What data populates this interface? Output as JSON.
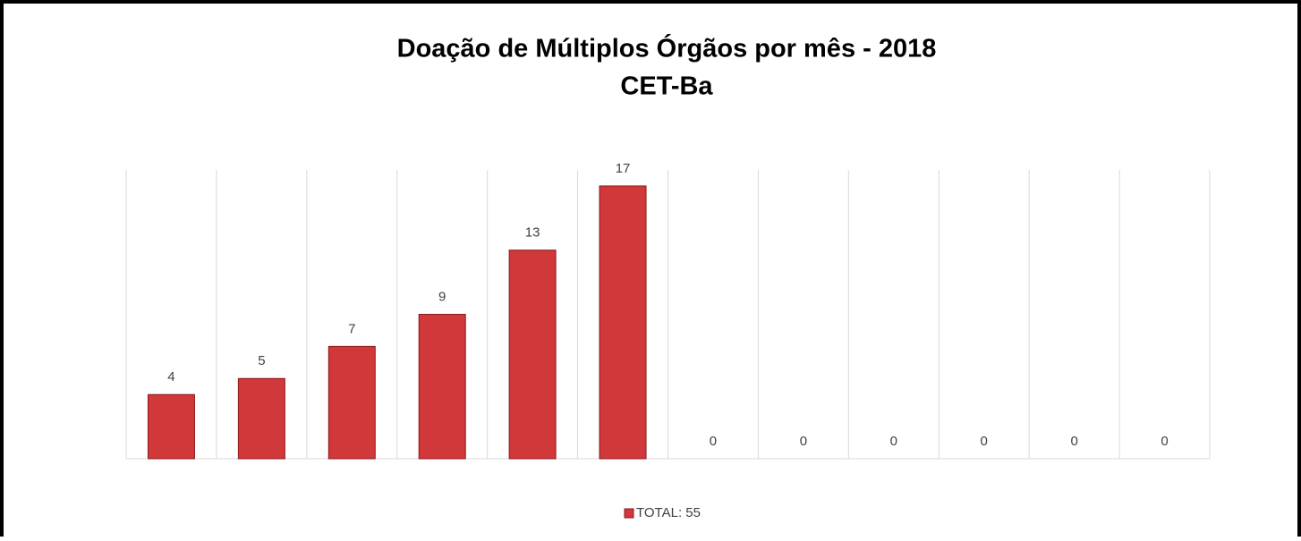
{
  "chart_data": {
    "type": "bar",
    "title": "Doação de Múltiplos Órgãos por mês - 2018",
    "subtitle": "CET-Ba",
    "categories": [
      null,
      null,
      null,
      null,
      null,
      null,
      null,
      null,
      null,
      null,
      null,
      null
    ],
    "series": [
      {
        "name": "TOTAL: 55",
        "color": "#d0383a",
        "values": [
          4,
          5,
          7,
          9,
          13,
          17,
          0,
          0,
          0,
          0,
          0,
          0
        ]
      }
    ],
    "ylim": [
      0,
      18
    ],
    "legend": "bottom"
  }
}
